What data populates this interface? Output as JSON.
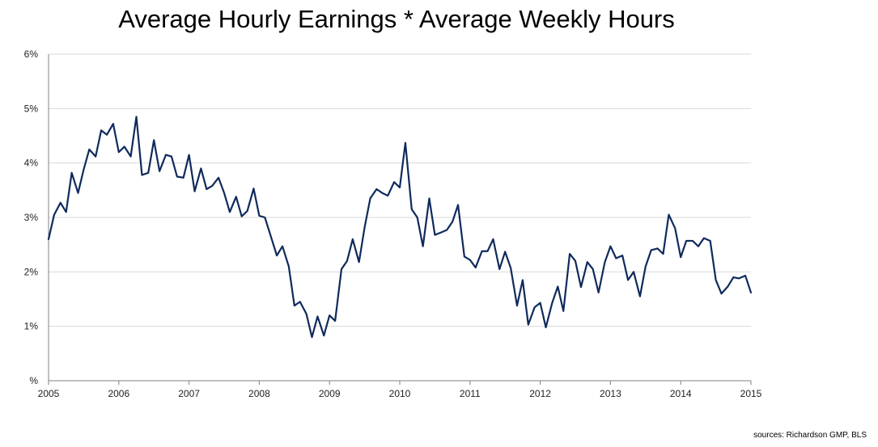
{
  "source_note": "sources: Richardson GMP, BLS",
  "chart_data": {
    "type": "line",
    "title": "Average Hourly Earnings * Average Weekly Hours",
    "xlabel": "",
    "ylabel": "",
    "xlim": [
      2005,
      2015
    ],
    "ylim": [
      0,
      6
    ],
    "x_ticks": [
      2005,
      2006,
      2007,
      2008,
      2009,
      2010,
      2011,
      2012,
      2013,
      2014,
      2015
    ],
    "x_tick_labels": [
      "2005",
      "2006",
      "2007",
      "2008",
      "2009",
      "2010",
      "2011",
      "2012",
      "2013",
      "2014",
      "2015"
    ],
    "y_ticks": [
      0,
      1,
      2,
      3,
      4,
      5,
      6
    ],
    "y_tick_labels": [
      "%",
      "1%",
      "2%",
      "3%",
      "4%",
      "5%",
      "6%"
    ],
    "grid": "horizontal",
    "line_color": "#0f2a5c",
    "series": [
      {
        "x": [
          2005.0,
          2005.08,
          2005.17,
          2005.25,
          2005.33,
          2005.42,
          2005.5,
          2005.58,
          2005.67,
          2005.75,
          2005.83,
          2005.92,
          2006.0,
          2006.08,
          2006.17,
          2006.25,
          2006.33,
          2006.42,
          2006.5,
          2006.58,
          2006.67,
          2006.75,
          2006.83,
          2006.92,
          2007.0,
          2007.08,
          2007.17,
          2007.25,
          2007.33,
          2007.42,
          2007.5,
          2007.58,
          2007.67,
          2007.75,
          2007.83,
          2007.92,
          2008.0,
          2008.08,
          2008.17,
          2008.25,
          2008.33,
          2008.42,
          2008.5,
          2008.58,
          2008.67,
          2008.75,
          2008.83,
          2008.92,
          2009.0,
          2009.08,
          2009.17,
          2009.25,
          2009.33,
          2009.42,
          2009.5,
          2009.58,
          2009.67,
          2009.75,
          2009.83,
          2009.92,
          2010.0,
          2010.08,
          2010.17,
          2010.25,
          2010.33,
          2010.42,
          2010.5,
          2010.58,
          2010.67,
          2010.75,
          2010.83,
          2010.92,
          2011.0,
          2011.08,
          2011.17,
          2011.25,
          2011.33,
          2011.42,
          2011.5,
          2011.58,
          2011.67,
          2011.75,
          2011.83,
          2011.92,
          2012.0,
          2012.08,
          2012.17,
          2012.25,
          2012.33,
          2012.42,
          2012.5,
          2012.58,
          2012.67,
          2012.75,
          2012.83,
          2012.92,
          2013.0,
          2013.08,
          2013.17,
          2013.25,
          2013.33,
          2013.42,
          2013.5,
          2013.58,
          2013.67,
          2013.75,
          2013.83,
          2013.92,
          2014.0,
          2014.08,
          2014.17,
          2014.25,
          2014.33,
          2014.42,
          2014.5,
          2014.58,
          2014.67,
          2014.75,
          2014.83,
          2014.92,
          2015.0
        ],
        "values": [
          2.6,
          3.05,
          3.27,
          3.1,
          3.82,
          3.45,
          3.88,
          4.25,
          4.12,
          4.6,
          4.52,
          4.72,
          4.2,
          4.3,
          4.12,
          4.85,
          3.78,
          3.82,
          4.42,
          3.85,
          4.15,
          4.12,
          3.75,
          3.73,
          4.15,
          3.48,
          3.9,
          3.52,
          3.58,
          3.73,
          3.45,
          3.1,
          3.38,
          3.02,
          3.12,
          3.53,
          3.03,
          3.0,
          2.63,
          2.3,
          2.47,
          2.1,
          1.38,
          1.45,
          1.23,
          0.8,
          1.18,
          0.83,
          1.2,
          1.1,
          2.05,
          2.2,
          2.6,
          2.18,
          2.82,
          3.35,
          3.52,
          3.45,
          3.4,
          3.65,
          3.55,
          4.37,
          3.15,
          3.0,
          2.47,
          3.35,
          2.68,
          2.72,
          2.77,
          2.92,
          3.23,
          2.28,
          2.22,
          2.08,
          2.38,
          2.38,
          2.6,
          2.05,
          2.37,
          2.07,
          1.38,
          1.85,
          1.03,
          1.35,
          1.43,
          0.98,
          1.43,
          1.73,
          1.28,
          2.33,
          2.2,
          1.72,
          2.18,
          2.05,
          1.62,
          2.18,
          2.47,
          2.25,
          2.3,
          1.85,
          2.0,
          1.55,
          2.1,
          2.4,
          2.43,
          2.33,
          3.05,
          2.8,
          2.27,
          2.57,
          2.57,
          2.47,
          2.62,
          2.57,
          1.85,
          1.6,
          1.73,
          1.9,
          1.88,
          1.93,
          1.62
        ]
      }
    ]
  }
}
